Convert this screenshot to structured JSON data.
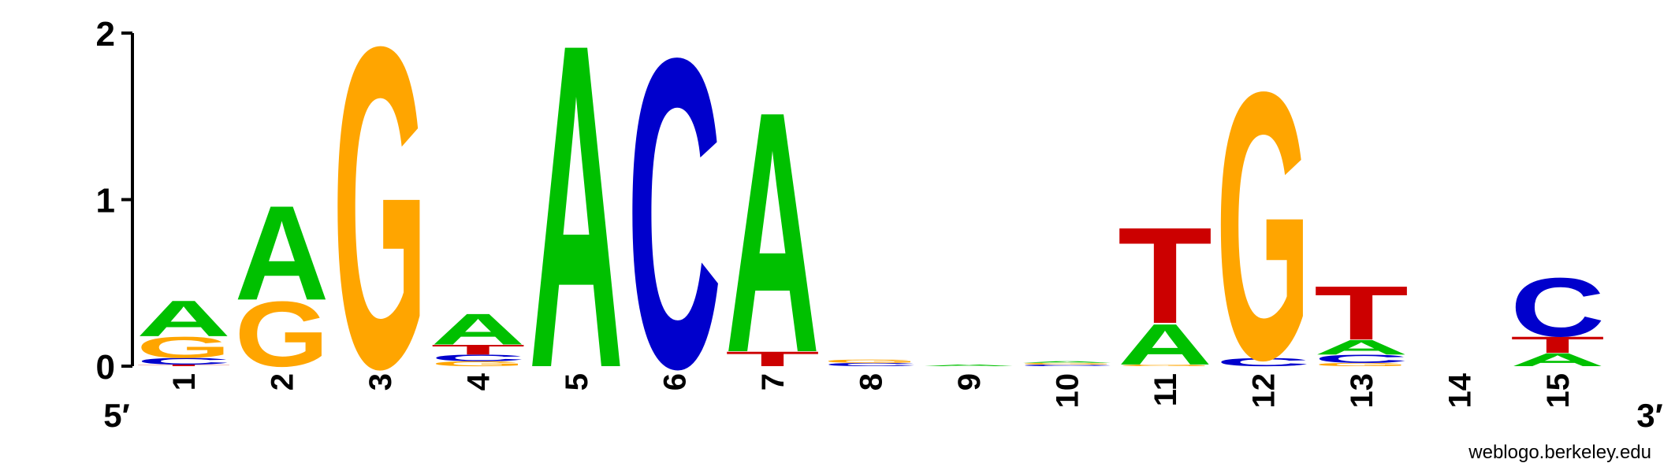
{
  "chart_data": {
    "type": "sequence_logo",
    "title": "",
    "xlabel": "",
    "ylabel": "",
    "ylim": [
      0,
      2
    ],
    "yticks": [
      "0",
      "1",
      "2"
    ],
    "end_labels": {
      "left": "5′",
      "right": "3′"
    },
    "footer": "weblogo.berkeley.edu",
    "colors": {
      "A": "#00C000",
      "C": "#0000CC",
      "G": "#FFA500",
      "T": "#CC0000"
    },
    "positions": [
      {
        "label": "1",
        "stack": [
          {
            "base": "T",
            "height": 0.01
          },
          {
            "base": "C",
            "height": 0.04
          },
          {
            "base": "G",
            "height": 0.13
          },
          {
            "base": "A",
            "height": 0.22
          }
        ]
      },
      {
        "label": "2",
        "stack": [
          {
            "base": "G",
            "height": 0.4
          },
          {
            "base": "A",
            "height": 0.58
          }
        ]
      },
      {
        "label": "3",
        "stack": [
          {
            "base": "G",
            "height": 1.97
          }
        ]
      },
      {
        "label": "4",
        "stack": [
          {
            "base": "G",
            "height": 0.03
          },
          {
            "base": "C",
            "height": 0.04
          },
          {
            "base": "T",
            "height": 0.06
          },
          {
            "base": "A",
            "height": 0.19
          }
        ]
      },
      {
        "label": "5",
        "stack": [
          {
            "base": "A",
            "height": 1.99
          }
        ]
      },
      {
        "label": "6",
        "stack": [
          {
            "base": "C",
            "height": 1.9
          }
        ]
      },
      {
        "label": "7",
        "stack": [
          {
            "base": "T",
            "height": 0.09
          },
          {
            "base": "A",
            "height": 1.48
          }
        ]
      },
      {
        "label": "8",
        "stack": [
          {
            "base": "C",
            "height": 0.02
          },
          {
            "base": "G",
            "height": 0.02
          }
        ]
      },
      {
        "label": "9",
        "stack": [
          {
            "base": "A",
            "height": 0.01
          }
        ]
      },
      {
        "label": "10",
        "stack": [
          {
            "base": "C",
            "height": 0.01
          },
          {
            "base": "G",
            "height": 0.01
          },
          {
            "base": "A",
            "height": 0.01
          }
        ]
      },
      {
        "label": "11",
        "stack": [
          {
            "base": "G",
            "height": 0.01
          },
          {
            "base": "A",
            "height": 0.25
          },
          {
            "base": "T",
            "height": 0.59
          }
        ]
      },
      {
        "label": "12",
        "stack": [
          {
            "base": "C",
            "height": 0.05
          },
          {
            "base": "G",
            "height": 1.64
          }
        ]
      },
      {
        "label": "13",
        "stack": [
          {
            "base": "G",
            "height": 0.02
          },
          {
            "base": "C",
            "height": 0.05
          },
          {
            "base": "A",
            "height": 0.09
          },
          {
            "base": "T",
            "height": 0.33
          }
        ]
      },
      {
        "label": "14",
        "stack": []
      },
      {
        "label": "15",
        "stack": [
          {
            "base": "A",
            "height": 0.08
          },
          {
            "base": "T",
            "height": 0.1
          },
          {
            "base": "C",
            "height": 0.36
          }
        ]
      }
    ]
  }
}
